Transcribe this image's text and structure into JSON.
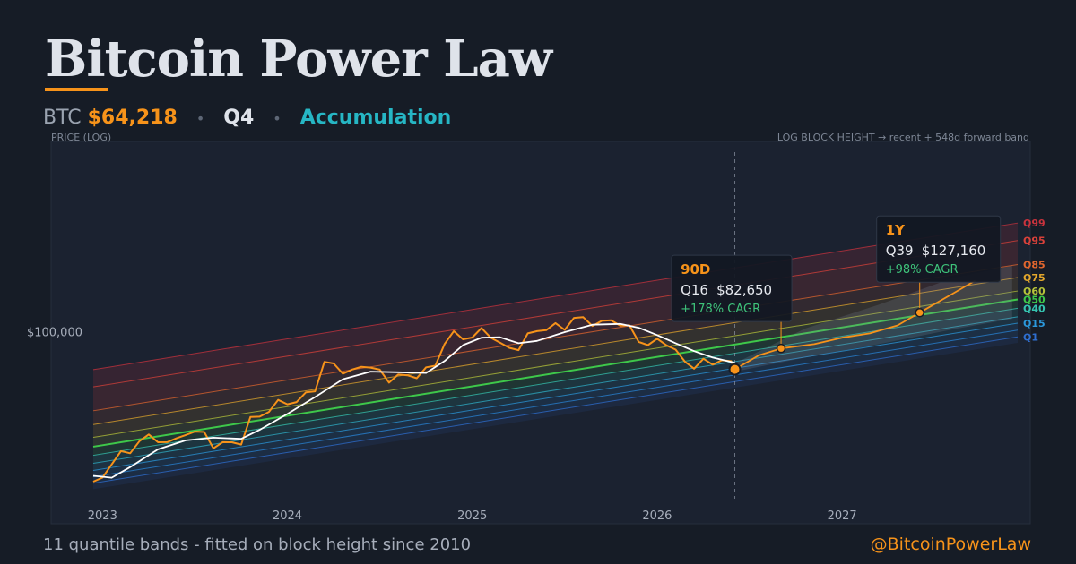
{
  "header": {
    "title": "Bitcoin Power Law",
    "ticker_label": "BTC",
    "price": "$64,218",
    "quantile": "Q4",
    "phase": "Accumulation"
  },
  "footer": {
    "note": "11 quantile bands - fitted on block height since 2010",
    "handle": "@BitcoinPowerLaw"
  },
  "colors": {
    "background": "#161c26",
    "plot_background": "#1b2230",
    "price_line": "#f7931a",
    "moving_average": "#ffffff",
    "accent_cyan": "#26b6c4",
    "cagr_green": "#3ec27a"
  },
  "chart_data": {
    "type": "line",
    "y_axis_label": "PRICE (LOG)",
    "x_axis_label": "LOG BLOCK HEIGHT → recent + 548d forward band",
    "y_scale": "log",
    "y_ticks": [
      {
        "value": 100000,
        "label": "$100,000"
      }
    ],
    "x_ticks": [
      {
        "value": 2023.0,
        "label": "2023"
      },
      {
        "value": 2024.0,
        "label": "2024"
      },
      {
        "value": 2025.0,
        "label": "2025"
      },
      {
        "value": 2026.0,
        "label": "2026"
      },
      {
        "value": 2027.0,
        "label": "2027"
      }
    ],
    "x_range": [
      2022.95,
      2027.95
    ],
    "y_range": [
      10000,
      1000000
    ],
    "today": 2026.42,
    "bands": [
      {
        "name": "Q1",
        "color": "#2f6fd1",
        "start": 16300,
        "end": 95000
      },
      {
        "name": "",
        "color": "#2a86d8",
        "start": 17600,
        "end": 103000
      },
      {
        "name": "Q15",
        "color": "#2b98dc",
        "start": 19000,
        "end": 112000
      },
      {
        "name": "",
        "color": "#2fb0c8",
        "start": 20700,
        "end": 121000
      },
      {
        "name": "Q40",
        "color": "#35c4b0",
        "start": 22800,
        "end": 134000
      },
      {
        "name": "Q50",
        "color": "#3ec84a",
        "start": 25300,
        "end": 149000
      },
      {
        "name": "Q60",
        "color": "#b7c43a",
        "start": 28300,
        "end": 165000
      },
      {
        "name": "Q75",
        "color": "#e3a72c",
        "start": 33000,
        "end": 194000
      },
      {
        "name": "Q85",
        "color": "#e0662e",
        "start": 39000,
        "end": 227000
      },
      {
        "name": "Q95",
        "color": "#d9413a",
        "start": 52000,
        "end": 303000
      },
      {
        "name": "Q99",
        "color": "#c9333d",
        "start": 64000,
        "end": 374000
      }
    ],
    "series": [
      {
        "name": "",
        "color": "#f7931a",
        "points": [
          [
            2022.95,
            16600
          ],
          [
            2023.0,
            16800
          ],
          [
            2023.05,
            21500
          ],
          [
            2023.1,
            23300
          ],
          [
            2023.15,
            23100
          ],
          [
            2023.2,
            28300
          ],
          [
            2023.25,
            28000
          ],
          [
            2023.3,
            27200
          ],
          [
            2023.35,
            27300
          ],
          [
            2023.4,
            26700
          ],
          [
            2023.45,
            30400
          ],
          [
            2023.5,
            30100
          ],
          [
            2023.55,
            29300
          ],
          [
            2023.6,
            26100
          ],
          [
            2023.65,
            25800
          ],
          [
            2023.7,
            26600
          ],
          [
            2023.75,
            27000
          ],
          [
            2023.8,
            34500
          ],
          [
            2023.85,
            37300
          ],
          [
            2023.9,
            39000
          ],
          [
            2023.95,
            42500
          ],
          [
            2024.0,
            44200
          ],
          [
            2024.05,
            42600
          ],
          [
            2024.1,
            47500
          ],
          [
            2024.15,
            51800
          ],
          [
            2024.2,
            67500
          ],
          [
            2024.25,
            69300
          ],
          [
            2024.3,
            63000
          ],
          [
            2024.35,
            61000
          ],
          [
            2024.4,
            68500
          ],
          [
            2024.45,
            66000
          ],
          [
            2024.5,
            61500
          ],
          [
            2024.55,
            57500
          ],
          [
            2024.6,
            59000
          ],
          [
            2024.65,
            58800
          ],
          [
            2024.7,
            60500
          ],
          [
            2024.75,
            63000
          ],
          [
            2024.8,
            68000
          ],
          [
            2024.85,
            89500
          ],
          [
            2024.9,
            97000
          ],
          [
            2024.95,
            96000
          ],
          [
            2025.0,
            94000
          ],
          [
            2025.05,
            102000
          ],
          [
            2025.1,
            99000
          ],
          [
            2025.15,
            86000
          ],
          [
            2025.2,
            82500
          ],
          [
            2025.25,
            84500
          ],
          [
            2025.3,
            94500
          ],
          [
            2025.35,
            104000
          ],
          [
            2025.4,
            105000
          ],
          [
            2025.45,
            107000
          ],
          [
            2025.5,
            108000
          ],
          [
            2025.55,
            118000
          ],
          [
            2025.6,
            117000
          ],
          [
            2025.65,
            114000
          ],
          [
            2025.7,
            111000
          ],
          [
            2025.75,
            116000
          ],
          [
            2025.8,
            113000
          ],
          [
            2025.85,
            104000
          ],
          [
            2025.9,
            92000
          ],
          [
            2025.95,
            87000
          ],
          [
            2026.0,
            89000
          ],
          [
            2026.05,
            90000
          ],
          [
            2026.1,
            80000
          ],
          [
            2026.15,
            69000
          ],
          [
            2026.2,
            68000
          ],
          [
            2026.25,
            70000
          ],
          [
            2026.3,
            68500
          ],
          [
            2026.35,
            74000
          ],
          [
            2026.4,
            67500
          ],
          [
            2026.42,
            64218
          ]
        ]
      },
      {
        "name": "",
        "color": "#ffffff",
        "points": [
          [
            2022.95,
            17800
          ],
          [
            2023.05,
            17400
          ],
          [
            2023.15,
            19800
          ],
          [
            2023.3,
            24500
          ],
          [
            2023.45,
            27300
          ],
          [
            2023.6,
            28200
          ],
          [
            2023.75,
            27800
          ],
          [
            2023.85,
            31000
          ],
          [
            2024.0,
            37500
          ],
          [
            2024.15,
            46000
          ],
          [
            2024.3,
            57000
          ],
          [
            2024.45,
            62500
          ],
          [
            2024.6,
            62000
          ],
          [
            2024.75,
            61500
          ],
          [
            2024.85,
            71000
          ],
          [
            2024.95,
            86000
          ],
          [
            2025.05,
            94000
          ],
          [
            2025.15,
            94500
          ],
          [
            2025.25,
            88000
          ],
          [
            2025.35,
            90500
          ],
          [
            2025.5,
            100500
          ],
          [
            2025.65,
            110000
          ],
          [
            2025.8,
            111000
          ],
          [
            2025.9,
            106000
          ],
          [
            2026.0,
            97000
          ],
          [
            2026.1,
            88000
          ],
          [
            2026.2,
            80000
          ],
          [
            2026.3,
            74000
          ],
          [
            2026.42,
            69500
          ]
        ]
      },
      {
        "name": "",
        "color": "#f7931a",
        "projection": true,
        "points": [
          [
            2026.42,
            64218
          ],
          [
            2026.55,
            76000
          ],
          [
            2026.67,
            82650
          ],
          [
            2026.85,
            87000
          ],
          [
            2027.0,
            94000
          ],
          [
            2027.15,
            99000
          ],
          [
            2027.3,
            109000
          ],
          [
            2027.42,
            127160
          ],
          [
            2027.6,
            160000
          ],
          [
            2027.72,
            187000
          ]
        ]
      }
    ],
    "forward_band": {
      "lower": [
        [
          2026.42,
          62500
        ],
        [
          2026.8,
          74000
        ],
        [
          2027.2,
          87000
        ],
        [
          2027.6,
          104000
        ],
        [
          2027.92,
          118000
        ]
      ],
      "upper": [
        [
          2026.42,
          69000
        ],
        [
          2026.8,
          105000
        ],
        [
          2027.2,
          140000
        ],
        [
          2027.6,
          193000
        ],
        [
          2027.92,
          224000
        ]
      ]
    },
    "annotations": [
      {
        "horizon": "90D",
        "quantile": "Q16",
        "price": "$82,650",
        "cagr": "+178% CAGR",
        "x": 2026.67,
        "y": 82650
      },
      {
        "horizon": "1Y",
        "quantile": "Q39",
        "price": "$127,160",
        "cagr": "+98% CAGR",
        "x": 2027.42,
        "y": 127160
      }
    ]
  }
}
